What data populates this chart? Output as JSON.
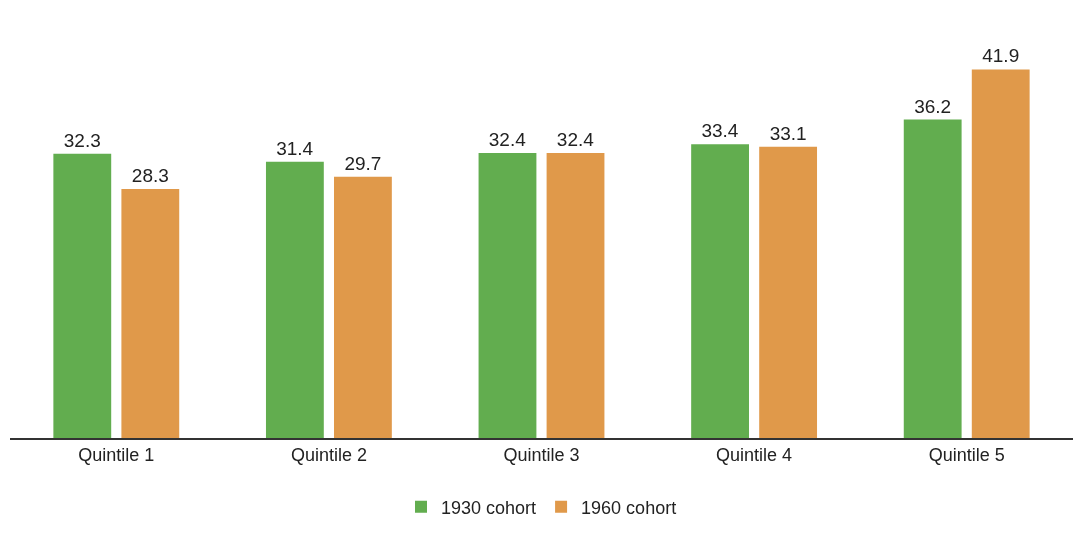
{
  "chart_data": {
    "type": "bar",
    "categories": [
      "Quintile 1",
      "Quintile 2",
      "Quintile 3",
      "Quintile 4",
      "Quintile 5"
    ],
    "series": [
      {
        "name": "1930 cohort",
        "color": "#62ad4f",
        "values": [
          32.3,
          31.4,
          32.4,
          33.4,
          36.2
        ]
      },
      {
        "name": "1960 cohort",
        "color": "#e0994a",
        "values": [
          28.3,
          29.7,
          32.4,
          33.1,
          41.9
        ]
      }
    ],
    "data_labels": true,
    "grid": false,
    "legend": "bottom"
  }
}
